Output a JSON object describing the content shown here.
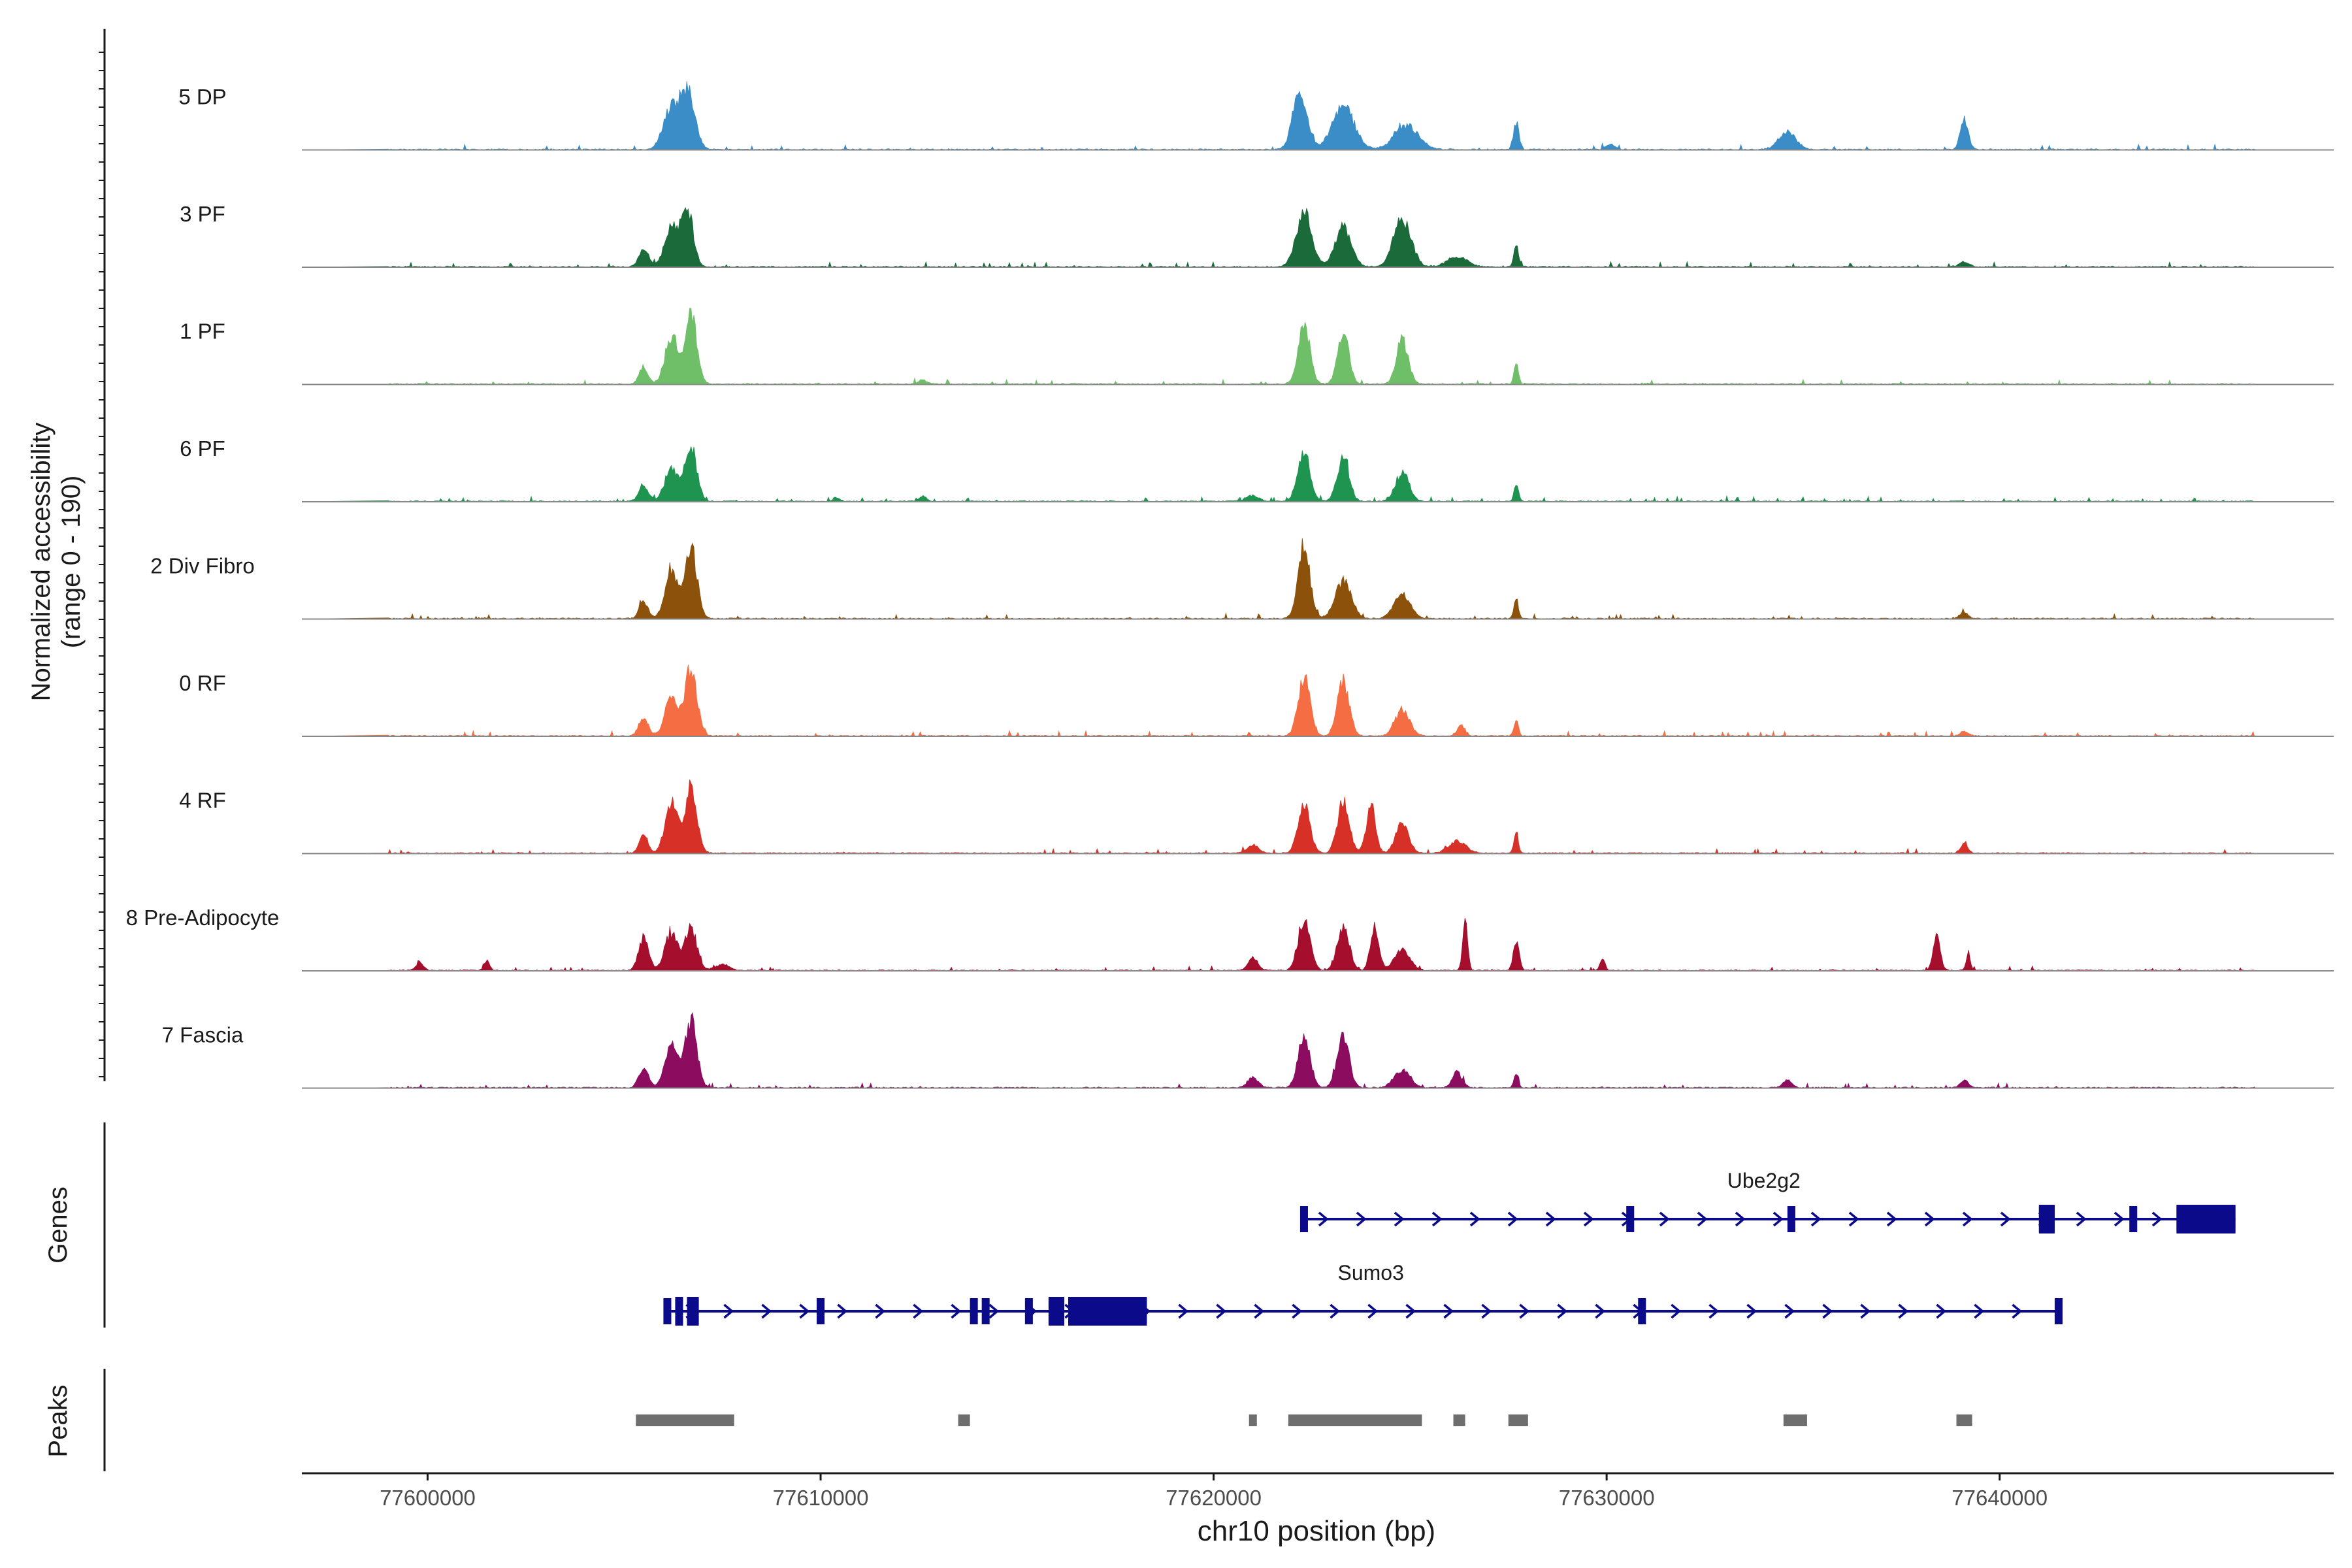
{
  "chart_data": {
    "type": "area",
    "title": "",
    "chromosome": "chr10",
    "xlabel": "chr10 position (bp)",
    "xlim": [
      77596800,
      77648500
    ],
    "xticks": [
      77600000,
      77610000,
      77620000,
      77630000,
      77640000
    ],
    "xtick_labels": [
      "77600000",
      "77610000",
      "77620000",
      "77630000",
      "77640000"
    ],
    "ylabel_line1": "Normalized accessibility",
    "ylabel_line2": "(range 0 - 190)",
    "ylim": [
      0,
      190
    ],
    "track_labels": {
      "genes": "Genes",
      "peaks": "Peaks"
    },
    "tracks": [
      {
        "name": "5 DP",
        "color": "#3a8dc6",
        "peaks": [
          [
            77606200,
            100,
            200
          ],
          [
            77606620,
            140,
            180
          ],
          [
            77622200,
            150,
            180
          ],
          [
            77623300,
            105,
            280
          ],
          [
            77624900,
            60,
            300
          ],
          [
            77627700,
            65,
            70
          ],
          [
            77634600,
            45,
            220
          ],
          [
            77639100,
            75,
            100
          ],
          [
            77630100,
            12,
            120
          ]
        ]
      },
      {
        "name": "3 PF",
        "color": "#1b6b3a",
        "peaks": [
          [
            77605500,
            45,
            120
          ],
          [
            77606200,
            95,
            170
          ],
          [
            77606600,
            150,
            150
          ],
          [
            77622300,
            135,
            200
          ],
          [
            77623300,
            100,
            200
          ],
          [
            77624800,
            120,
            220
          ],
          [
            77626200,
            25,
            250
          ],
          [
            77627700,
            50,
            60
          ],
          [
            77639100,
            14,
            110
          ]
        ]
      },
      {
        "name": "1 PF",
        "color": "#6fbf68",
        "peaks": [
          [
            77605500,
            45,
            110
          ],
          [
            77606200,
            120,
            160
          ],
          [
            77606700,
            170,
            150
          ],
          [
            77622300,
            140,
            150
          ],
          [
            77623300,
            130,
            140
          ],
          [
            77624800,
            110,
            150
          ],
          [
            77627700,
            60,
            55
          ],
          [
            77612600,
            10,
            100
          ]
        ]
      },
      {
        "name": "6 PF",
        "color": "#1e9450",
        "peaks": [
          [
            77605500,
            40,
            120
          ],
          [
            77606200,
            80,
            170
          ],
          [
            77606700,
            140,
            150
          ],
          [
            77621000,
            15,
            150
          ],
          [
            77622300,
            115,
            160
          ],
          [
            77623300,
            110,
            150
          ],
          [
            77624800,
            75,
            170
          ],
          [
            77627700,
            45,
            55
          ],
          [
            77610400,
            10,
            80
          ],
          [
            77612600,
            12,
            100
          ]
        ]
      },
      {
        "name": "2 Div Fibro",
        "color": "#8c510a",
        "peaks": [
          [
            77605500,
            45,
            110
          ],
          [
            77606200,
            125,
            160
          ],
          [
            77606700,
            185,
            150
          ],
          [
            77622300,
            180,
            150
          ],
          [
            77623300,
            95,
            200
          ],
          [
            77624800,
            60,
            200
          ],
          [
            77627700,
            50,
            55
          ],
          [
            77639100,
            16,
            100
          ]
        ]
      },
      {
        "name": "0 RF",
        "color": "#f46d43",
        "peaks": [
          [
            77605500,
            45,
            120
          ],
          [
            77606200,
            100,
            160
          ],
          [
            77606700,
            175,
            150
          ],
          [
            77622300,
            145,
            150
          ],
          [
            77623300,
            135,
            150
          ],
          [
            77624800,
            65,
            180
          ],
          [
            77626300,
            25,
            100
          ],
          [
            77627700,
            45,
            55
          ],
          [
            77639100,
            12,
            100
          ]
        ]
      },
      {
        "name": "4 RF",
        "color": "#d73027",
        "peaks": [
          [
            77605500,
            45,
            110
          ],
          [
            77606200,
            120,
            160
          ],
          [
            77606700,
            170,
            150
          ],
          [
            77621000,
            20,
            140
          ],
          [
            77622300,
            120,
            150
          ],
          [
            77623300,
            130,
            150
          ],
          [
            77624000,
            110,
            120
          ],
          [
            77624800,
            80,
            160
          ],
          [
            77626200,
            30,
            220
          ],
          [
            77627700,
            50,
            55
          ],
          [
            77639100,
            25,
            90
          ]
        ]
      },
      {
        "name": "8 Pre-Adipocyte",
        "color": "#a50f2d",
        "peaks": [
          [
            77605500,
            80,
            130
          ],
          [
            77606200,
            95,
            160
          ],
          [
            77606700,
            105,
            150
          ],
          [
            77621000,
            30,
            120
          ],
          [
            77622300,
            130,
            150
          ],
          [
            77623300,
            110,
            150
          ],
          [
            77624100,
            105,
            110
          ],
          [
            77624800,
            50,
            200
          ],
          [
            77626400,
            140,
            60
          ],
          [
            77627700,
            70,
            75
          ],
          [
            77629900,
            30,
            60
          ],
          [
            77638400,
            80,
            90
          ],
          [
            77639200,
            45,
            55
          ],
          [
            77599800,
            20,
            90
          ],
          [
            77601500,
            25,
            70
          ],
          [
            77607500,
            15,
            180
          ]
        ]
      },
      {
        "name": "7 Fascia",
        "color": "#8c0d5f",
        "peaks": [
          [
            77605500,
            50,
            120
          ],
          [
            77606200,
            110,
            160
          ],
          [
            77606700,
            170,
            150
          ],
          [
            77621000,
            25,
            140
          ],
          [
            77622300,
            135,
            150
          ],
          [
            77623300,
            125,
            150
          ],
          [
            77624800,
            45,
            200
          ],
          [
            77626200,
            40,
            120
          ],
          [
            77627700,
            35,
            55
          ],
          [
            77634600,
            20,
            110
          ],
          [
            77639100,
            20,
            100
          ]
        ]
      }
    ],
    "genes": [
      {
        "name": "Ube2g2",
        "color": "#0a0a8a",
        "start": 77622300,
        "end": 77646000,
        "strand": "+",
        "exons": [
          [
            77622200,
            77622400
          ],
          [
            77630500,
            77630700
          ],
          [
            77634600,
            77634800
          ],
          [
            77641000,
            77641400
          ],
          [
            77643300,
            77643500
          ],
          [
            77644500,
            77646000
          ]
        ],
        "coding": [
          [
            77641000,
            77641400
          ],
          [
            77644500,
            77646000
          ]
        ]
      },
      {
        "name": "Sumo3",
        "color": "#0a0a8a",
        "start": 77606200,
        "end": 77641500,
        "strand": "+",
        "exons": [
          [
            77606000,
            77606200
          ],
          [
            77606300,
            77606500
          ],
          [
            77606600,
            77606900
          ],
          [
            77609900,
            77610100
          ],
          [
            77613800,
            77614000
          ],
          [
            77614100,
            77614300
          ],
          [
            77615200,
            77615400
          ],
          [
            77615800,
            77616200
          ],
          [
            77616300,
            77618300
          ],
          [
            77630800,
            77631000
          ],
          [
            77641400,
            77641600
          ]
        ],
        "coding": [
          [
            77606300,
            77606500
          ],
          [
            77606600,
            77606900
          ],
          [
            77615800,
            77616200
          ],
          [
            77616300,
            77618300
          ]
        ]
      }
    ],
    "peak_regions": [
      [
        77605300,
        77607800
      ],
      [
        77613500,
        77613800
      ],
      [
        77620900,
        77621100
      ],
      [
        77621900,
        77625300
      ],
      [
        77626100,
        77626400
      ],
      [
        77627500,
        77628000
      ],
      [
        77634500,
        77635100
      ],
      [
        77638900,
        77639300
      ]
    ]
  }
}
